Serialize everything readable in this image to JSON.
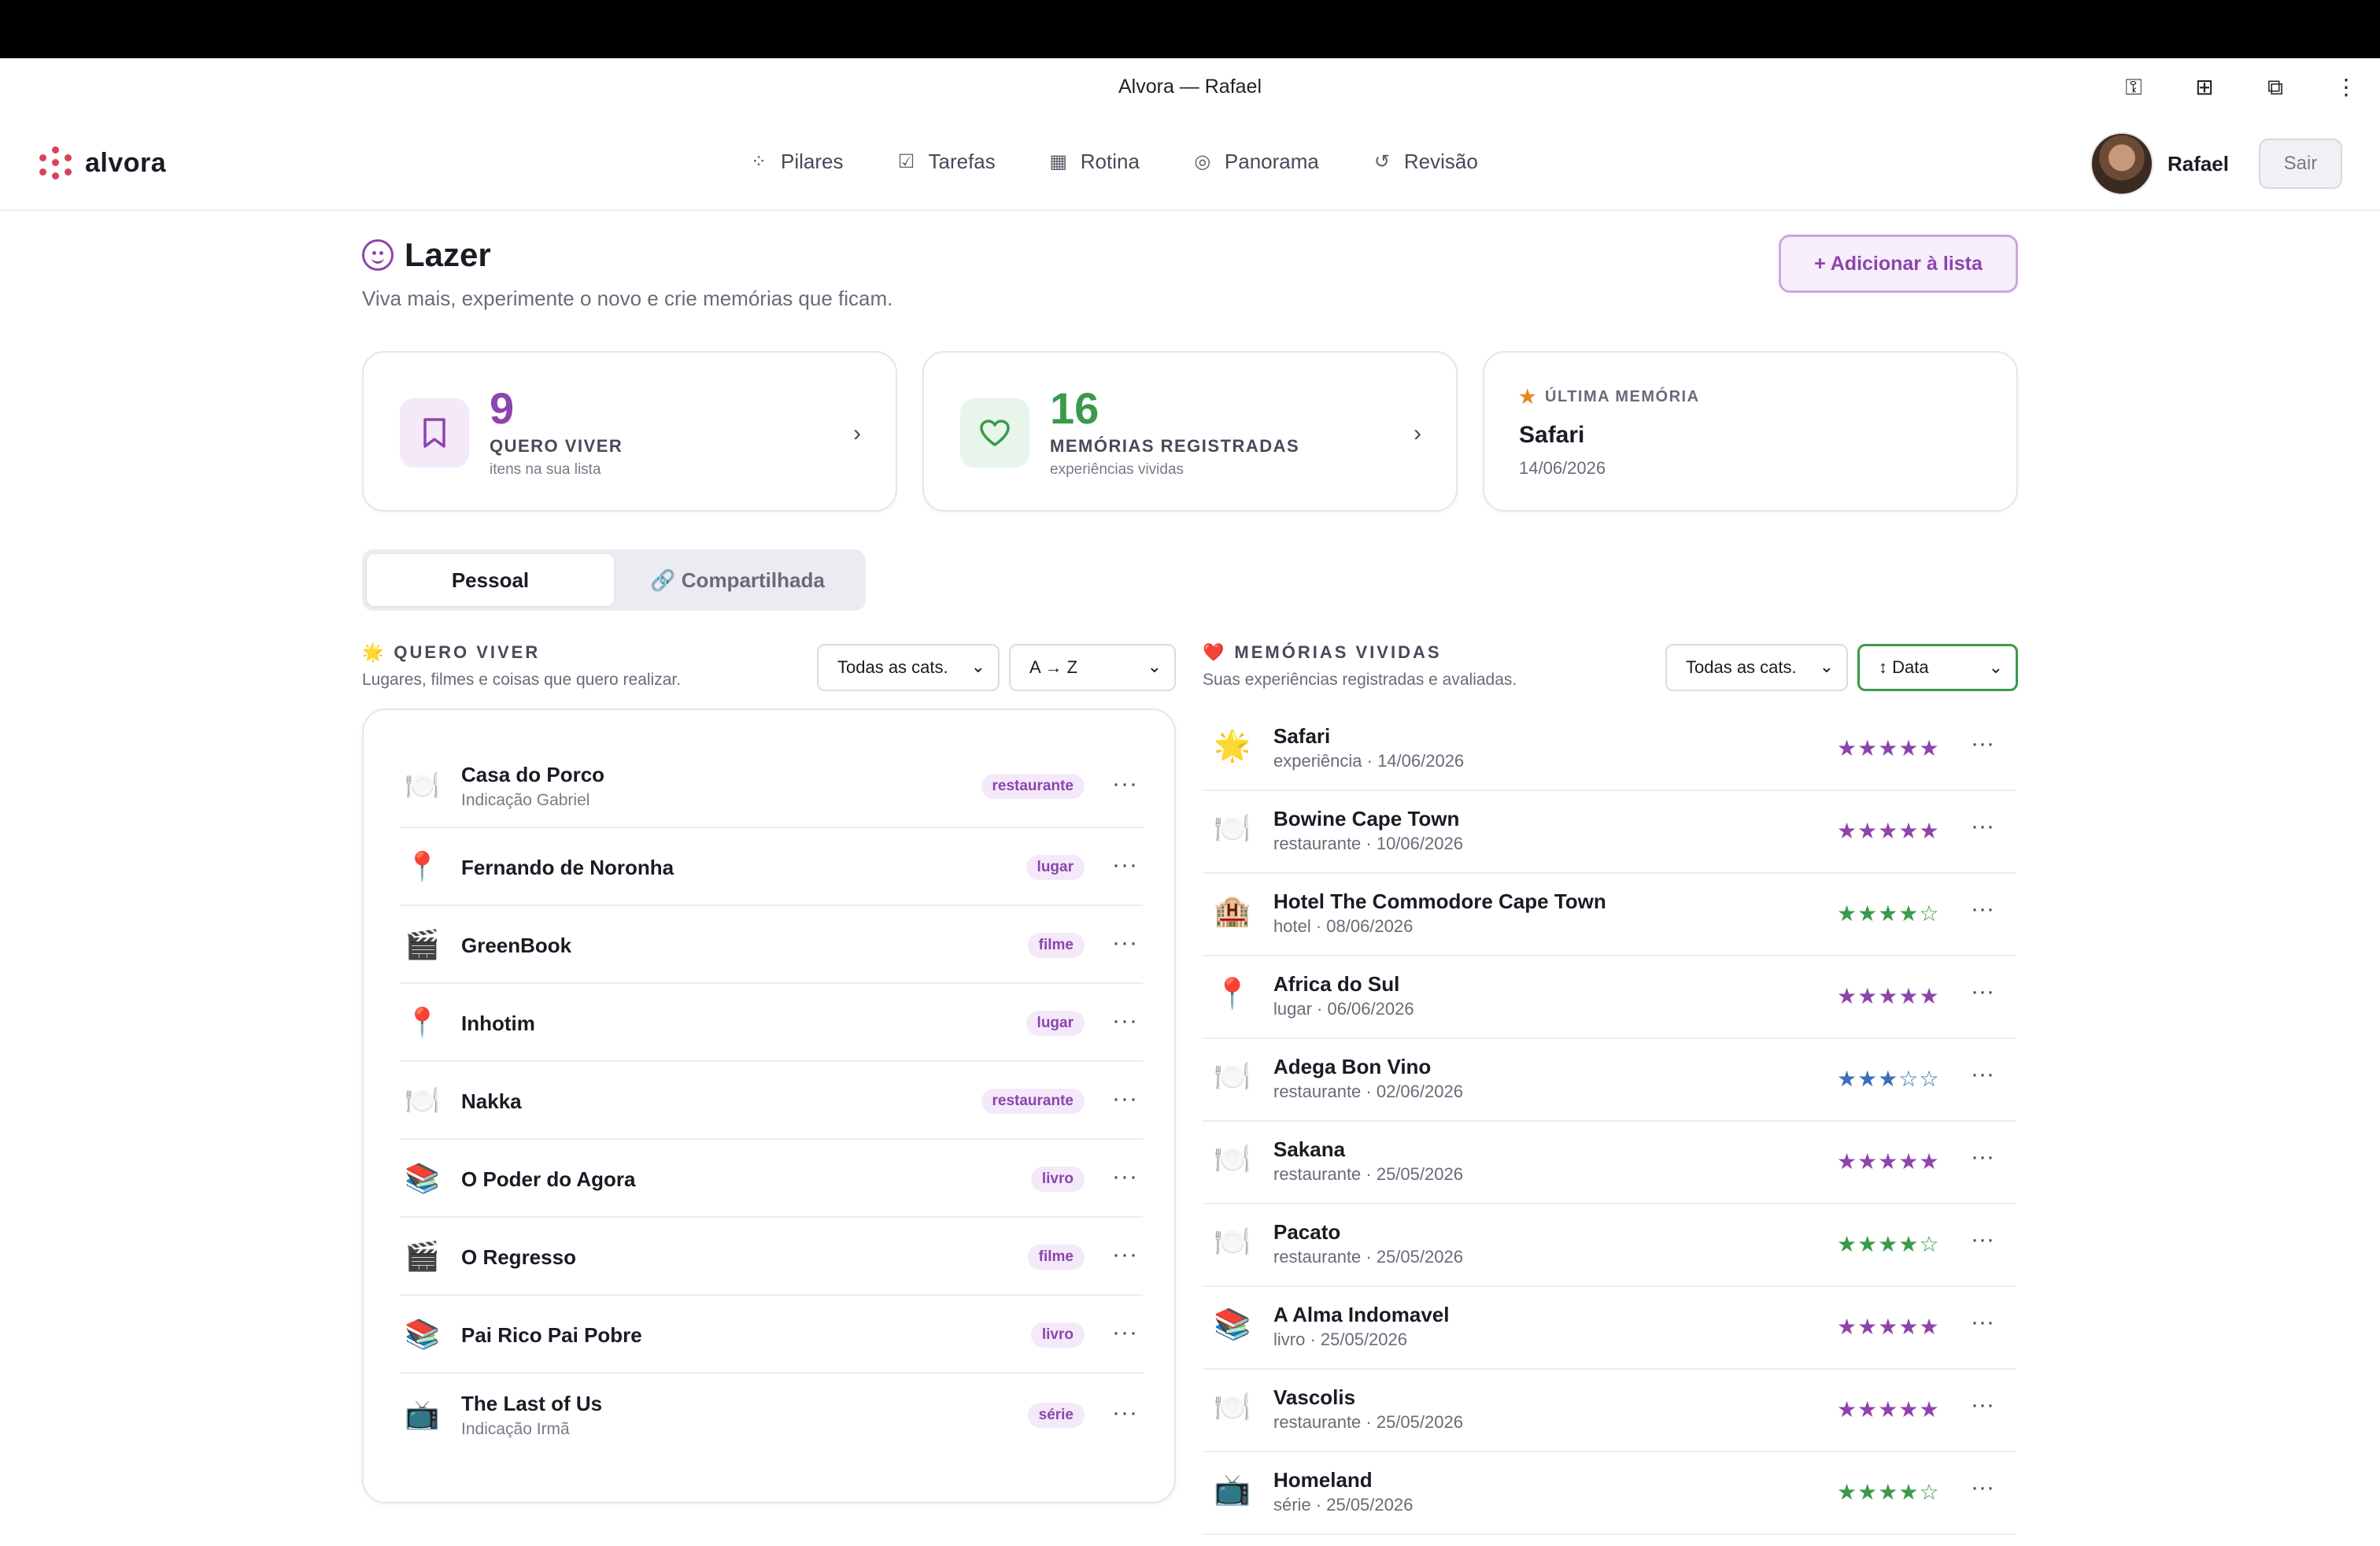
{
  "window": {
    "title": "Alvora — Rafael",
    "browser_icons": [
      "key-icon",
      "translate-icon",
      "extension-icon",
      "kebab-menu-icon"
    ]
  },
  "brand": {
    "name": "alvora",
    "color": "#d9425e"
  },
  "nav": [
    {
      "label": "Pilares",
      "icon": "dots-grid-icon"
    },
    {
      "label": "Tarefas",
      "icon": "checkbox-icon"
    },
    {
      "label": "Rotina",
      "icon": "calendar-icon"
    },
    {
      "label": "Panorama",
      "icon": "target-icon"
    },
    {
      "label": "Revisão",
      "icon": "rotate-icon"
    }
  ],
  "user": {
    "name": "Rafael",
    "logout_label": "Sair"
  },
  "page": {
    "title": "Lazer",
    "subtitle": "Viva mais, experimente o novo e crie memórias que ficam.",
    "add_button": "+ Adicionar à lista",
    "accent": "#8e44ad"
  },
  "stats": {
    "want": {
      "value": "9",
      "label": "QUERO VIVER",
      "hint": "itens na sua lista",
      "color": "#8e44ad"
    },
    "memories": {
      "value": "16",
      "label": "MEMÓRIAS REGISTRADAS",
      "hint": "experiências vividas",
      "color": "#3a9a4a"
    },
    "last": {
      "label": "ÚLTIMA MEMÓRIA",
      "name": "Safari",
      "date": "14/06/2026"
    }
  },
  "tabs": {
    "personal": "Pessoal",
    "shared": "🔗 Compartilhada",
    "active": "personal"
  },
  "want_section": {
    "icon": "🌟",
    "title": "QUERO VIVER",
    "subtitle": "Lugares, filmes e coisas que quero realizar.",
    "filter_category": "Todas as cats.",
    "filter_sort": "A → Z",
    "items": [
      {
        "icon": "🍽️",
        "title": "Casa do Porco",
        "subtitle": "Indicação Gabriel",
        "tag": "restaurante"
      },
      {
        "icon": "📍",
        "title": "Fernando de Noronha",
        "subtitle": "",
        "tag": "lugar"
      },
      {
        "icon": "🎬",
        "title": "GreenBook",
        "subtitle": "",
        "tag": "filme"
      },
      {
        "icon": "📍",
        "title": "Inhotim",
        "subtitle": "",
        "tag": "lugar"
      },
      {
        "icon": "🍽️",
        "title": "Nakka",
        "subtitle": "",
        "tag": "restaurante"
      },
      {
        "icon": "📚",
        "title": "O Poder do Agora",
        "subtitle": "",
        "tag": "livro"
      },
      {
        "icon": "🎬",
        "title": "O Regresso",
        "subtitle": "",
        "tag": "filme"
      },
      {
        "icon": "📚",
        "title": "Pai Rico Pai Pobre",
        "subtitle": "",
        "tag": "livro"
      },
      {
        "icon": "📺",
        "title": "The Last of Us",
        "subtitle": "Indicação Irmã",
        "tag": "série"
      }
    ]
  },
  "memories_section": {
    "icon": "❤️",
    "title": "MEMÓRIAS VIVIDAS",
    "subtitle": "Suas experiências registradas e avaliadas.",
    "filter_category": "Todas as cats.",
    "filter_sort": "↕ Data",
    "items": [
      {
        "icon": "🌟",
        "title": "Safari",
        "subtitle": "experiência · 14/06/2026",
        "rating": 5,
        "color": "#8e44ad"
      },
      {
        "icon": "🍽️",
        "title": "Bowine Cape Town",
        "subtitle": "restaurante · 10/06/2026",
        "rating": 5,
        "color": "#8e44ad"
      },
      {
        "icon": "🏨",
        "title": "Hotel The Commodore Cape Town",
        "subtitle": "hotel · 08/06/2026",
        "rating": 4,
        "color": "#3a9a4a"
      },
      {
        "icon": "📍",
        "title": "Africa do Sul",
        "subtitle": "lugar · 06/06/2026",
        "rating": 5,
        "color": "#8e44ad"
      },
      {
        "icon": "🍽️",
        "title": "Adega Bon Vino",
        "subtitle": "restaurante · 02/06/2026",
        "rating": 3,
        "color": "#3b6fb8"
      },
      {
        "icon": "🍽️",
        "title": "Sakana",
        "subtitle": "restaurante · 25/05/2026",
        "rating": 5,
        "color": "#8e44ad"
      },
      {
        "icon": "🍽️",
        "title": "Pacato",
        "subtitle": "restaurante · 25/05/2026",
        "rating": 4,
        "color": "#3a9a4a"
      },
      {
        "icon": "📚",
        "title": "A Alma Indomavel",
        "subtitle": "livro · 25/05/2026",
        "rating": 5,
        "color": "#8e44ad"
      },
      {
        "icon": "🍽️",
        "title": "Vascolis",
        "subtitle": "restaurante · 25/05/2026",
        "rating": 5,
        "color": "#8e44ad"
      },
      {
        "icon": "📺",
        "title": "Homeland",
        "subtitle": "série · 25/05/2026",
        "rating": 4,
        "color": "#3a9a4a"
      }
    ]
  }
}
